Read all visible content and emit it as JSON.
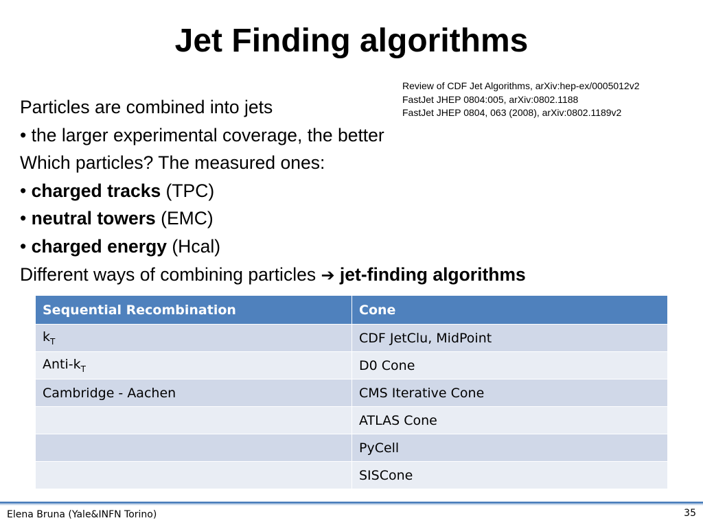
{
  "slide": {
    "title": "Jet Finding algorithms",
    "references": [
      "Review of CDF Jet Algorithms, arXiv:hep-ex/0005012v2",
      "FastJet JHEP 0804:005, arXiv:0802.1188",
      "FastJet JHEP 0804, 063 (2008), arXiv:0802.1189v2"
    ],
    "lines": {
      "l1": "Particles are combined into jets",
      "l2": "• the larger experimental coverage, the better",
      "l3": "Which particles? The measured ones:",
      "l4_bullet": "• ",
      "l4_bold": "charged tracks",
      "l4_rest": " (TPC)",
      "l5_bullet": "• ",
      "l5_bold": "neutral towers",
      "l5_rest": " (EMC)",
      "l6_bullet": "• ",
      "l6_bold": "charged energy",
      "l6_rest": " (Hcal)",
      "l7_text": "Different ways of combining particles ",
      "l7_arrow": "➔",
      "l7_bold": "jet-finding algorithms"
    },
    "table": {
      "headers": [
        "Sequential Recombination",
        "Cone"
      ],
      "rows": [
        {
          "col1": "k",
          "col1_sub": "T",
          "col2": "CDF JetClu, MidPoint"
        },
        {
          "col1": "Anti-k",
          "col1_sub": "T",
          "col2": "D0 Cone"
        },
        {
          "col1": "Cambridge - Aachen",
          "col1_sub": "",
          "col2": "CMS Iterative Cone"
        },
        {
          "col1": "",
          "col1_sub": "",
          "col2": "ATLAS Cone"
        },
        {
          "col1": "",
          "col1_sub": "",
          "col2": "PyCell"
        },
        {
          "col1": "",
          "col1_sub": "",
          "col2": "SISCone"
        }
      ]
    },
    "footer": {
      "author": "Elena Bruna (Yale&INFN Torino)",
      "page_number": "35"
    },
    "colors": {
      "header_blue": "#4f81bd",
      "row_dark": "#d0d8e8",
      "row_light": "#e9edf4"
    }
  }
}
